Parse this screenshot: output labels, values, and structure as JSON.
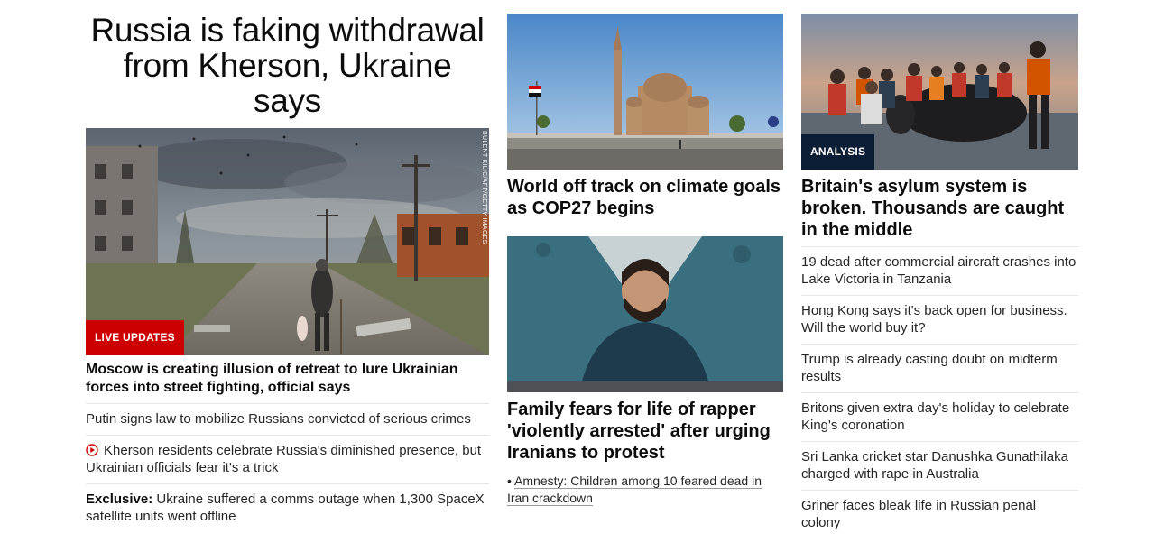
{
  "main": {
    "headline": "Russia is faking withdrawal from Kherson, Ukraine says",
    "badge": "LIVE UPDATES",
    "credit": "BULENT KILIC/AFP/GETTY IMAGES",
    "lead": "Moscow is creating illusion of retreat to lure Ukrainian forces into street fighting, official says",
    "items": [
      {
        "text": "Putin signs law to mobilize Russians convicted of serious crimes"
      },
      {
        "text": "Kherson residents celebrate Russia's diminished presence, but Ukrainian officials fear it's a trick",
        "icon": "play-icon"
      },
      {
        "prefix": "Exclusive:",
        "text": " Ukraine suffered a comms outage when 1,300 SpaceX satellite units went offline"
      }
    ]
  },
  "middle": {
    "story1": {
      "headline": "World off track on climate goals as COP27 begins"
    },
    "story2": {
      "headline": "Family fears for life of rapper 'violently arrested' after urging Iranians to protest",
      "sub_bullet": "•",
      "sub_link": "Amnesty: Children among 10 feared dead in Iran crackdown"
    }
  },
  "right": {
    "badge": "ANALYSIS",
    "headline": "Britain's asylum system is broken. Thousands are caught in the middle",
    "items": [
      "19 dead after commercial aircraft crashes into Lake Victoria in Tanzania",
      "Hong Kong says it's back open for business. Will the world buy it?",
      "Trump is already casting doubt on midterm results",
      "Britons given extra day's holiday to celebrate King's coronation",
      "Sri Lanka cricket star Danushka Gunathilaka charged with rape in Australia",
      "Griner faces bleak life in Russian penal colony"
    ]
  },
  "colors": {
    "live_badge": "#cc0000",
    "analysis_badge": "#0c1d36",
    "text": "#0c0c0c",
    "divider": "#e6e6e6"
  }
}
